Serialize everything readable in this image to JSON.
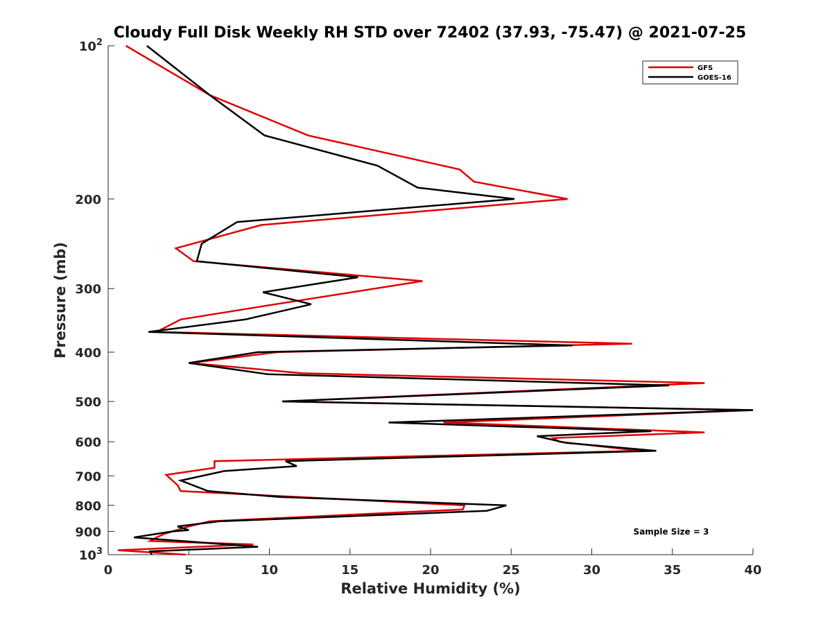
{
  "chart_data": {
    "type": "line",
    "title": "Cloudy Full Disk Weekly RH STD over 72402 (37.93, -75.47) @ 2021-07-25",
    "xlabel": "Relative Humidity (%)",
    "ylabel": "Pressure (mb)",
    "xlim": [
      0,
      40
    ],
    "ylim": [
      100,
      1000
    ],
    "yscale": "log",
    "yreversed": true,
    "grid": false,
    "legend_position": "top-right",
    "xticks": [
      0,
      5,
      10,
      15,
      20,
      25,
      30,
      35,
      40
    ],
    "xtick_labels": [
      "0",
      "5",
      "10",
      "15",
      "20",
      "25",
      "30",
      "35",
      "40"
    ],
    "yticks": [
      {
        "value": 100,
        "base": "10",
        "exp": "2"
      },
      {
        "value": 200,
        "label": "200"
      },
      {
        "value": 300,
        "label": "300"
      },
      {
        "value": 400,
        "label": "400"
      },
      {
        "value": 500,
        "label": "500"
      },
      {
        "value": 600,
        "label": "600"
      },
      {
        "value": 700,
        "label": "700"
      },
      {
        "value": 800,
        "label": "800"
      },
      {
        "value": 900,
        "label": "900"
      },
      {
        "value": 1000,
        "base": "10",
        "exp": "3"
      }
    ],
    "annotation": "Sample Size = 3",
    "series": [
      {
        "name": "GFS",
        "color": "#e00000",
        "points": [
          [
            1.1,
            100
          ],
          [
            6.3,
            125
          ],
          [
            12.4,
            150
          ],
          [
            21.8,
            175
          ],
          [
            22.7,
            185
          ],
          [
            28.5,
            200
          ],
          [
            9.5,
            225
          ],
          [
            4.2,
            250
          ],
          [
            5.3,
            265
          ],
          [
            19.5,
            290
          ],
          [
            9.6,
            325
          ],
          [
            4.5,
            345
          ],
          [
            3.0,
            365
          ],
          [
            32.5,
            385
          ],
          [
            10.5,
            400
          ],
          [
            5.1,
            420
          ],
          [
            12.0,
            440
          ],
          [
            37.0,
            460
          ],
          [
            10.8,
            500
          ],
          [
            40.0,
            520
          ],
          [
            20.8,
            550
          ],
          [
            37.0,
            575
          ],
          [
            27.6,
            590
          ],
          [
            28.0,
            600
          ],
          [
            33.0,
            625
          ],
          [
            6.6,
            655
          ],
          [
            6.6,
            675
          ],
          [
            3.6,
            697
          ],
          [
            4.3,
            730
          ],
          [
            4.5,
            750
          ],
          [
            22.1,
            800
          ],
          [
            22.0,
            815
          ],
          [
            6.3,
            860
          ],
          [
            5.0,
            880
          ],
          [
            3.5,
            910
          ],
          [
            3.0,
            925
          ],
          [
            2.6,
            940
          ],
          [
            9.0,
            955
          ],
          [
            0.6,
            980
          ],
          [
            4.8,
            1000
          ]
        ]
      },
      {
        "name": "GOES-16",
        "color": "#000000",
        "points": [
          [
            2.4,
            100
          ],
          [
            6.3,
            125
          ],
          [
            9.7,
            150
          ],
          [
            16.7,
            172
          ],
          [
            19.2,
            190
          ],
          [
            25.2,
            200
          ],
          [
            8.0,
            222
          ],
          [
            5.8,
            245
          ],
          [
            5.5,
            265
          ],
          [
            15.5,
            285
          ],
          [
            9.6,
            305
          ],
          [
            12.6,
            322
          ],
          [
            8.5,
            345
          ],
          [
            2.5,
            365
          ],
          [
            28.8,
            388
          ],
          [
            9.3,
            400
          ],
          [
            5.0,
            420
          ],
          [
            9.9,
            442
          ],
          [
            34.8,
            465
          ],
          [
            10.8,
            500
          ],
          [
            40.0,
            520
          ],
          [
            17.4,
            550
          ],
          [
            33.7,
            572
          ],
          [
            26.6,
            585
          ],
          [
            28.4,
            603
          ],
          [
            34.0,
            625
          ],
          [
            11.0,
            655
          ],
          [
            11.7,
            670
          ],
          [
            7.2,
            685
          ],
          [
            4.5,
            715
          ],
          [
            6.2,
            750
          ],
          [
            10.6,
            770
          ],
          [
            24.7,
            800
          ],
          [
            23.5,
            820
          ],
          [
            6.9,
            860
          ],
          [
            4.3,
            880
          ],
          [
            5.0,
            895
          ],
          [
            4.0,
            900
          ],
          [
            1.6,
            925
          ],
          [
            9.3,
            965
          ],
          [
            2.6,
            985
          ],
          [
            2.7,
            1000
          ]
        ]
      }
    ]
  }
}
